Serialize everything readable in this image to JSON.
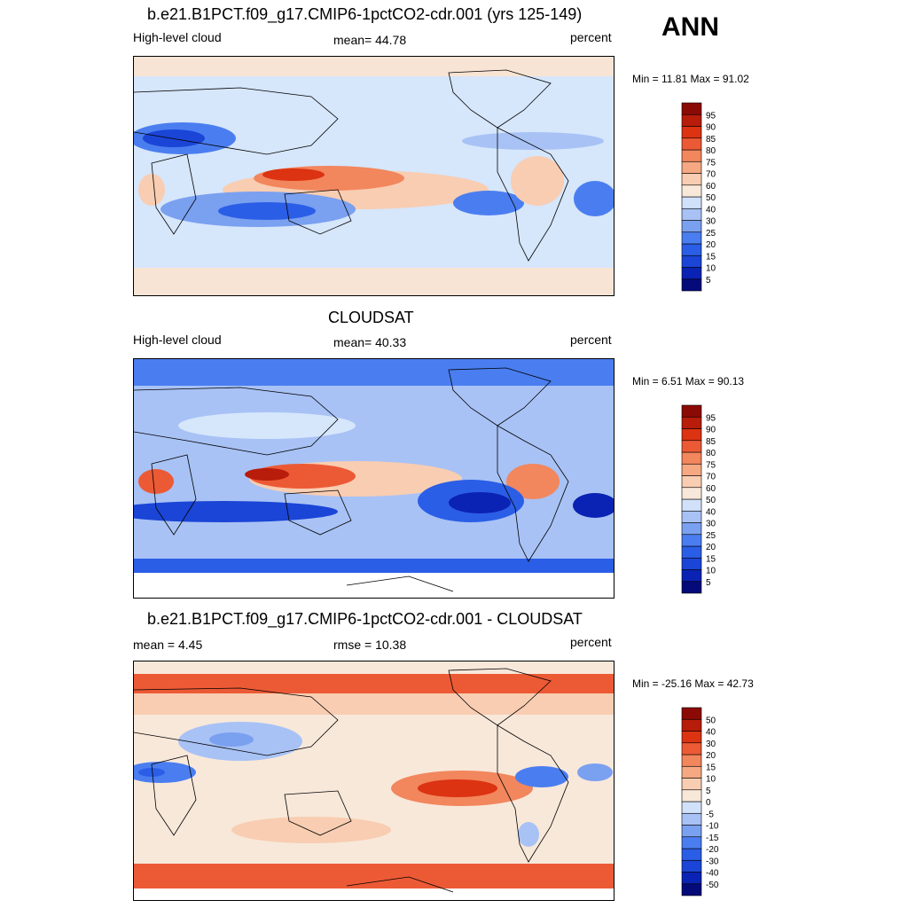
{
  "ann_label": "ANN",
  "panels": [
    {
      "title": "b.e21.B1PCT.f09_g17.CMIP6-1pctCO2-cdr.001 (yrs 125-149)",
      "left_label": "High-level cloud",
      "center_label": "mean=  44.78",
      "right_label": "percent",
      "minmax": "Min =  11.81 Max =  91.02",
      "colorbar_levels": [
        "5",
        "10",
        "15",
        "20",
        "25",
        "30",
        "40",
        "50",
        "60",
        "70",
        "75",
        "80",
        "85",
        "90",
        "95"
      ],
      "colorbar_colors": [
        "#050a7a",
        "#0a23b4",
        "#1b45d6",
        "#2b5ee6",
        "#4a7ef0",
        "#7aa0f0",
        "#a8c2f5",
        "#d1e1fa",
        "#f8e8da",
        "#f8cdb2",
        "#f5a882",
        "#f2865d",
        "#ec5a35",
        "#dc3312",
        "#b81c0a",
        "#8c0a05"
      ]
    },
    {
      "title": "CLOUDSAT",
      "left_label": "High-level cloud",
      "center_label": "mean=  40.33",
      "right_label": "percent",
      "minmax": "Min =   6.51 Max =  90.13",
      "colorbar_levels": [
        "5",
        "10",
        "15",
        "20",
        "25",
        "30",
        "40",
        "50",
        "60",
        "70",
        "75",
        "80",
        "85",
        "90",
        "95"
      ],
      "colorbar_colors": [
        "#050a7a",
        "#0a23b4",
        "#1b45d6",
        "#2b5ee6",
        "#4a7ef0",
        "#7aa0f0",
        "#a8c2f5",
        "#d1e1fa",
        "#f8e8da",
        "#f8cdb2",
        "#f5a882",
        "#f2865d",
        "#ec5a35",
        "#dc3312",
        "#b81c0a",
        "#8c0a05"
      ]
    },
    {
      "title": "b.e21.B1PCT.f09_g17.CMIP6-1pctCO2-cdr.001 - CLOUDSAT",
      "left_label": "mean =   4.45",
      "center_label": "rmse =  10.38",
      "right_label": "percent",
      "minmax": "Min = -25.16 Max =  42.73",
      "colorbar_levels": [
        "-50",
        "-40",
        "-30",
        "-20",
        "-15",
        "-10",
        "-5",
        "0",
        "5",
        "10",
        "15",
        "20",
        "30",
        "40",
        "50"
      ],
      "colorbar_colors": [
        "#050a7a",
        "#0a23b4",
        "#1b45d6",
        "#2b5ee6",
        "#4a7ef0",
        "#7aa0f0",
        "#a8c2f5",
        "#d1e1fa",
        "#f8e8da",
        "#f8cdb2",
        "#f5a882",
        "#f2865d",
        "#ec5a35",
        "#dc3312",
        "#b81c0a",
        "#8c0a05"
      ]
    }
  ],
  "chart_data": [
    {
      "type": "heatmap",
      "title": "b.e21.B1PCT.f09_g17.CMIP6-1pctCO2-cdr.001 (yrs 125-149)",
      "variable": "High-level cloud",
      "units": "percent",
      "mean": 44.78,
      "min": 11.81,
      "max": 91.02,
      "levels": [
        5,
        10,
        15,
        20,
        25,
        30,
        40,
        50,
        60,
        70,
        75,
        80,
        85,
        90,
        95
      ]
    },
    {
      "type": "heatmap",
      "title": "CLOUDSAT",
      "variable": "High-level cloud",
      "units": "percent",
      "mean": 40.33,
      "min": 6.51,
      "max": 90.13,
      "levels": [
        5,
        10,
        15,
        20,
        25,
        30,
        40,
        50,
        60,
        70,
        75,
        80,
        85,
        90,
        95
      ]
    },
    {
      "type": "heatmap",
      "title": "b.e21.B1PCT.f09_g17.CMIP6-1pctCO2-cdr.001 - CLOUDSAT",
      "units": "percent",
      "mean": 4.45,
      "rmse": 10.38,
      "min": -25.16,
      "max": 42.73,
      "levels": [
        -50,
        -40,
        -30,
        -20,
        -15,
        -10,
        -5,
        0,
        5,
        10,
        15,
        20,
        30,
        40,
        50
      ]
    }
  ]
}
